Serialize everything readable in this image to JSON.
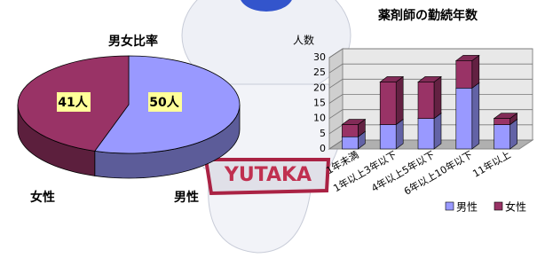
{
  "mascot_belt_text": "YUTAKA",
  "chart_data": [
    {
      "type": "pie",
      "title": "男女比率",
      "categories": [
        "男性",
        "女性"
      ],
      "values": [
        50,
        41
      ],
      "value_labels": [
        "50人",
        "41人"
      ],
      "colors": [
        "#9999ff",
        "#993366"
      ]
    },
    {
      "type": "bar",
      "stacked": true,
      "title": "薬剤師の勤続年数",
      "y_label": "人数",
      "categories": [
        "1年未満",
        "1年以上3年以下",
        "4年以上5年以下",
        "6年以上10年以下",
        "11年以上"
      ],
      "series": [
        {
          "name": "男性",
          "color": "#9999ff",
          "values": [
            4,
            8,
            10,
            20,
            8
          ]
        },
        {
          "name": "女性",
          "color": "#993366",
          "values": [
            4,
            14,
            12,
            9,
            2
          ]
        }
      ],
      "ylim": [
        0,
        30
      ],
      "yticks": [
        0,
        5,
        10,
        15,
        20,
        25,
        30
      ],
      "grid": true
    }
  ]
}
